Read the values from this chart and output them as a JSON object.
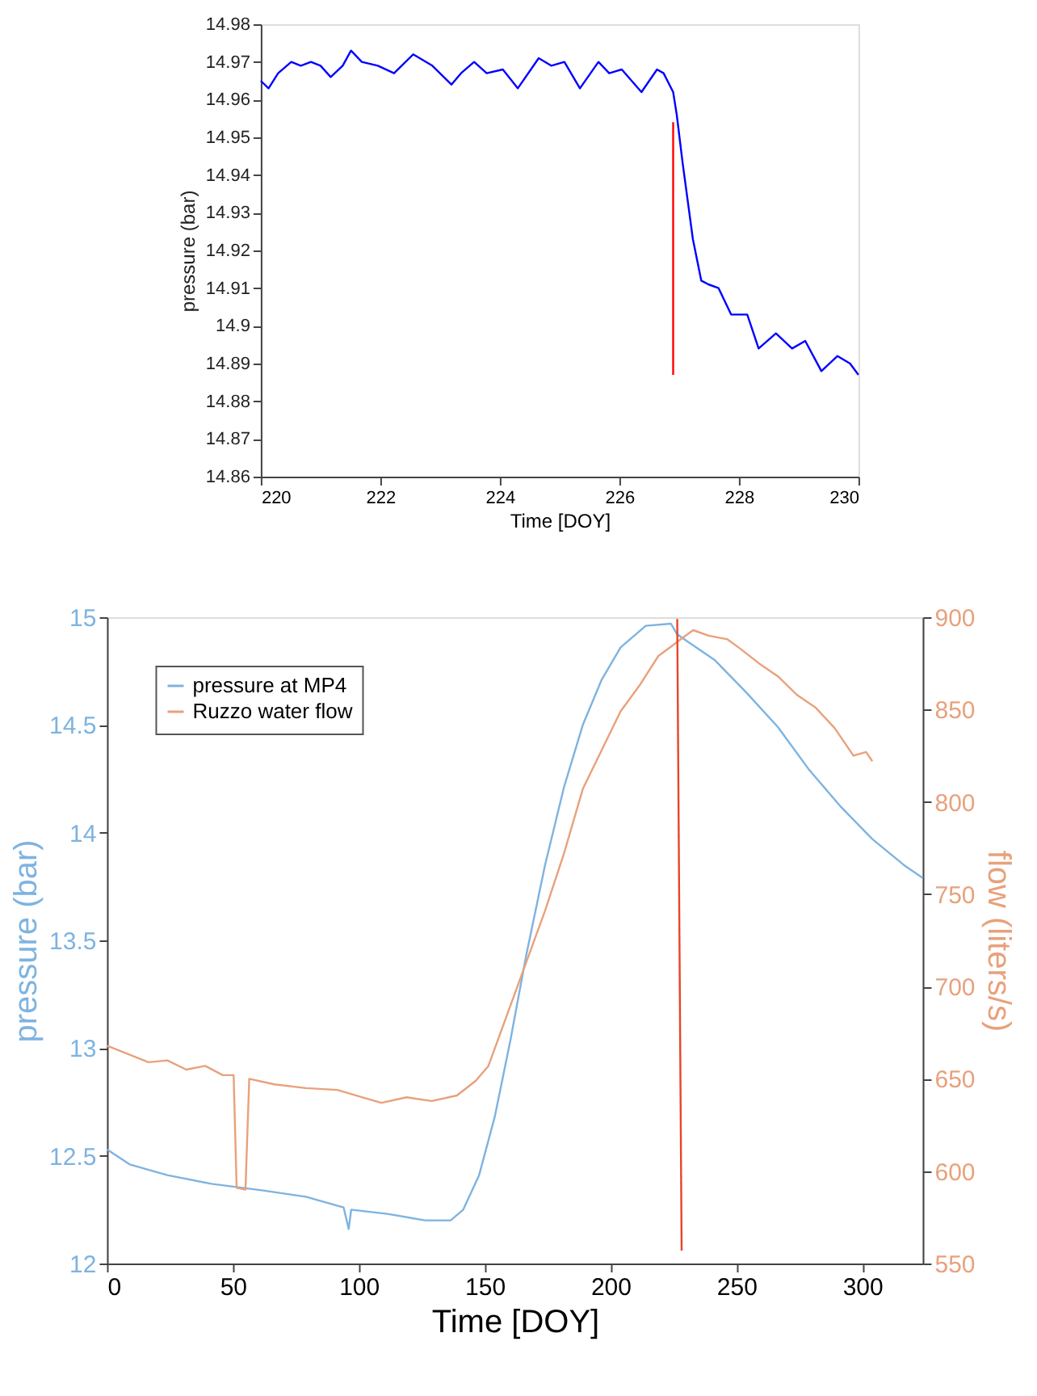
{
  "chart_data": [
    {
      "type": "line",
      "xlabel": "Time [DOY]",
      "ylabel": "pressure (bar)",
      "xlim": [
        220,
        230
      ],
      "ylim": [
        14.86,
        14.98
      ],
      "xticks": [
        220,
        222,
        224,
        226,
        228,
        230
      ],
      "yticks": [
        14.86,
        14.87,
        14.88,
        14.89,
        14.9,
        14.91,
        14.92,
        14.93,
        14.94,
        14.95,
        14.96,
        14.97,
        14.98
      ],
      "grid": false,
      "legend": false,
      "series": [
        {
          "color": "#0000ff",
          "x": [
            220,
            220.13,
            220.29,
            220.51,
            220.67,
            220.84,
            221.0,
            221.17,
            221.37,
            221.51,
            221.69,
            221.96,
            222.23,
            222.55,
            222.87,
            223.19,
            223.35,
            223.57,
            223.78,
            224.05,
            224.3,
            224.65,
            224.86,
            225.08,
            225.34,
            225.65,
            225.83,
            226.04,
            226.37,
            226.63,
            226.74,
            226.9,
            226.96,
            227.06,
            227.23,
            227.37,
            227.49,
            227.66,
            227.87,
            228.14,
            228.33,
            228.62,
            228.89,
            229.11,
            229.38,
            229.65,
            229.86,
            230.0
          ],
          "values": [
            14.965,
            14.963,
            14.967,
            14.97,
            14.969,
            14.97,
            14.969,
            14.966,
            14.969,
            14.973,
            14.97,
            14.969,
            14.967,
            14.972,
            14.969,
            14.964,
            14.967,
            14.97,
            14.967,
            14.968,
            14.963,
            14.971,
            14.969,
            14.97,
            14.963,
            14.97,
            14.967,
            14.968,
            14.962,
            14.968,
            14.967,
            14.962,
            14.956,
            14.943,
            14.923,
            14.912,
            14.911,
            14.91,
            14.903,
            14.903,
            14.894,
            14.898,
            14.894,
            14.896,
            14.888,
            14.892,
            14.89,
            14.887
          ]
        },
        {
          "color": "#ff0000",
          "x": [
            226.9,
            226.9
          ],
          "values": [
            14.954,
            14.887
          ]
        }
      ]
    },
    {
      "type": "line",
      "xlabel": "Time [DOY]",
      "ylabel": "pressure (bar)",
      "y2label": "flow (liters/s)",
      "xlim": [
        0,
        324
      ],
      "ylim": [
        12,
        15
      ],
      "y2lim": [
        550,
        900
      ],
      "xticks": [
        0,
        50,
        100,
        150,
        200,
        250,
        300
      ],
      "yticks": [
        12,
        12.5,
        13,
        13.5,
        14,
        14.5,
        15
      ],
      "y2ticks": [
        550,
        600,
        650,
        700,
        750,
        800,
        850,
        900
      ],
      "grid": false,
      "legend": "top left",
      "series": [
        {
          "name": "pressure at MP4",
          "color": "#7eb3e0",
          "x": [
            0,
            9,
            24,
            41.5,
            61.5,
            79,
            94,
            96,
            97,
            111.5,
            126.5,
            136.5,
            141.5,
            147.8,
            154,
            160.3,
            166.5,
            174,
            181.5,
            189,
            196.5,
            204,
            214,
            224,
            226.5,
            231.5,
            241.5,
            254,
            266.5,
            279,
            291.5,
            304,
            316.5,
            324
          ],
          "values": [
            12.53,
            12.46,
            12.41,
            12.37,
            12.34,
            12.31,
            12.26,
            12.16,
            12.25,
            12.23,
            12.2,
            12.2,
            12.25,
            12.41,
            12.68,
            13.04,
            13.43,
            13.85,
            14.21,
            14.5,
            14.71,
            14.86,
            14.96,
            14.97,
            14.92,
            14.88,
            14.8,
            14.65,
            14.49,
            14.29,
            14.12,
            13.97,
            13.85,
            13.79
          ]
        },
        {
          "name": "Ruzzo water flow",
          "color": "#e8a17c",
          "axis": "y2",
          "x": [
            0,
            16.5,
            24,
            31.5,
            39,
            46,
            50.3,
            51.5,
            55,
            56.5,
            66.5,
            79,
            91.5,
            101.5,
            109,
            119,
            129,
            139,
            146.5,
            151.5,
            159,
            166.5,
            174,
            181.5,
            189,
            196.5,
            204,
            211.5,
            219,
            224,
            227.8,
            232.8,
            239,
            246.5,
            251.5,
            259,
            266.5,
            274,
            281.5,
            289,
            296.5,
            301.5,
            304
          ],
          "values": [
            668,
            659,
            660,
            655,
            657,
            652,
            652,
            591,
            590,
            650,
            647,
            645,
            644,
            640,
            637,
            640,
            638,
            641,
            649,
            657,
            685,
            713,
            741,
            772,
            807,
            828,
            849,
            863,
            879,
            884,
            888,
            893,
            890,
            888,
            883,
            875,
            868,
            858,
            851,
            840,
            825,
            827,
            822
          ]
        },
        {
          "color": "#e8442a",
          "axis": "y2",
          "x": [
            226.5,
            228.25
          ],
          "values": [
            899,
            557
          ]
        }
      ]
    }
  ]
}
